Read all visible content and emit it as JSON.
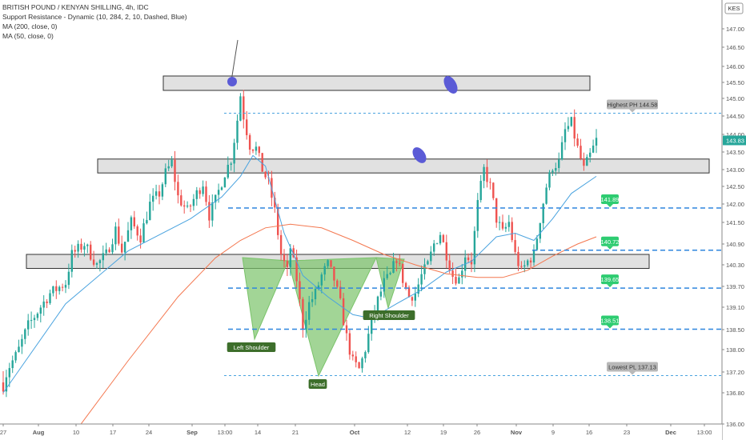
{
  "legend": {
    "symbol_line": "BRITISH POUND / KENYAN SHILLING, 4h, IDC",
    "indicator_sr": "Support Resistance - Dynamic (10, 284, 2, 10, Dashed, Blue)",
    "indicator_ma200": "MA (200, close, 0)",
    "indicator_ma50": "MA (50, close, 0)"
  },
  "currency_badge": "KES",
  "colors": {
    "up": "#26a69a",
    "down": "#ef5350",
    "ma50": "#4aa3df",
    "ma200": "#f4774f",
    "sr_line": "#2e86de",
    "pattern_fill": "#7ac36a",
    "label_green": "#2ecc71",
    "label_gray": "#b8b8b8",
    "pattern_label": "#3d6e2b",
    "ellipse": "#5b5bd6",
    "last_price": "#26a69a"
  },
  "chart_data": {
    "type": "candlestick",
    "title": "BRITISH POUND / KENYAN SHILLING, 4h, IDC",
    "x_labels": [
      "27",
      "Aug",
      "10",
      "17",
      "24",
      "Sep",
      "13:00",
      "14",
      "21",
      "Oct",
      "12",
      "19",
      "26",
      "Nov",
      "9",
      "16",
      "23",
      "Dec",
      "13:00"
    ],
    "y_ticks": [
      "147.00",
      "146.50",
      "146.00",
      "145.50",
      "145.00",
      "144.50",
      "144.00",
      "143.50",
      "143.00",
      "142.50",
      "142.00",
      "141.50",
      "140.90",
      "140.30",
      "139.70",
      "139.10",
      "138.50",
      "138.00",
      "137.20",
      "136.80",
      "136.00"
    ],
    "ylim": [
      135.9,
      147.5
    ],
    "last_price": "143.83",
    "zones": [
      {
        "from": 145.25,
        "to": 145.7
      },
      {
        "from": 142.9,
        "to": 143.3
      },
      {
        "from": 140.2,
        "to": 140.6
      }
    ],
    "dashed_levels": [
      {
        "value": 144.58,
        "label": "Highest PH 144.58",
        "style": "gray"
      },
      {
        "value": 141.89,
        "label": "141.89",
        "style": "green"
      },
      {
        "value": 140.72,
        "label": "140.72",
        "style": "green"
      },
      {
        "value": 139.65,
        "label": "139.65",
        "style": "green"
      },
      {
        "value": 138.51,
        "label": "138.51",
        "style": "green"
      },
      {
        "value": 137.13,
        "label": "Lowest PL 137.13",
        "style": "gray"
      }
    ],
    "pattern_labels": [
      "Left Shoulder",
      "Head",
      "Right Shoulder"
    ],
    "price_path": [
      [
        0,
        137.0
      ],
      [
        8,
        138.6
      ],
      [
        15,
        139.5
      ],
      [
        20,
        139.8
      ],
      [
        22,
        140.6
      ],
      [
        26,
        140.9
      ],
      [
        30,
        140.3
      ],
      [
        33,
        140.6
      ],
      [
        36,
        141.3
      ],
      [
        38,
        140.7
      ],
      [
        41,
        141.5
      ],
      [
        44,
        141.1
      ],
      [
        47,
        142.0
      ],
      [
        50,
        142.3
      ],
      [
        52,
        142.9
      ],
      [
        54,
        143.2
      ],
      [
        56,
        142.2
      ],
      [
        59,
        141.8
      ],
      [
        62,
        142.3
      ],
      [
        64,
        142.6
      ],
      [
        66,
        141.7
      ],
      [
        68,
        142.1
      ],
      [
        71,
        142.9
      ],
      [
        73,
        143.3
      ],
      [
        75,
        144.4
      ],
      [
        76,
        145.1
      ],
      [
        77,
        144.5
      ],
      [
        79,
        143.7
      ],
      [
        81,
        143.6
      ],
      [
        83,
        143.0
      ],
      [
        85,
        142.6
      ],
      [
        87,
        141.8
      ],
      [
        89,
        140.6
      ],
      [
        91,
        140.1
      ],
      [
        92,
        140.8
      ],
      [
        94,
        139.9
      ],
      [
        96,
        138.6
      ],
      [
        98,
        139.2
      ],
      [
        100,
        139.5
      ],
      [
        102,
        140.0
      ],
      [
        104,
        140.3
      ],
      [
        106,
        139.9
      ],
      [
        108,
        139.2
      ],
      [
        110,
        138.3
      ],
      [
        112,
        137.6
      ],
      [
        114,
        137.3
      ],
      [
        116,
        138.0
      ],
      [
        118,
        138.7
      ],
      [
        120,
        139.3
      ],
      [
        122,
        139.8
      ],
      [
        124,
        140.0
      ],
      [
        126,
        140.5
      ],
      [
        127,
        140.2
      ],
      [
        128,
        139.9
      ],
      [
        130,
        139.4
      ],
      [
        132,
        139.5
      ],
      [
        134,
        140.0
      ],
      [
        136,
        140.3
      ],
      [
        138,
        140.9
      ],
      [
        140,
        141.2
      ],
      [
        142,
        140.6
      ],
      [
        144,
        140.0
      ],
      [
        146,
        139.9
      ],
      [
        148,
        140.6
      ],
      [
        150,
        140.4
      ],
      [
        152,
        142.0
      ],
      [
        154,
        143.0
      ],
      [
        156,
        142.5
      ],
      [
        158,
        141.6
      ],
      [
        160,
        141.2
      ],
      [
        162,
        141.5
      ],
      [
        164,
        140.6
      ],
      [
        166,
        140.1
      ],
      [
        168,
        140.4
      ],
      [
        170,
        140.6
      ],
      [
        172,
        141.6
      ],
      [
        174,
        142.5
      ],
      [
        176,
        143.1
      ],
      [
        178,
        143.2
      ],
      [
        180,
        144.1
      ],
      [
        182,
        144.3
      ],
      [
        184,
        143.6
      ],
      [
        186,
        143.0
      ],
      [
        188,
        143.4
      ],
      [
        190,
        143.83
      ]
    ],
    "ma50": [
      [
        0,
        136.8
      ],
      [
        20,
        139.2
      ],
      [
        40,
        140.7
      ],
      [
        60,
        141.6
      ],
      [
        70,
        142.2
      ],
      [
        76,
        142.8
      ],
      [
        80,
        143.4
      ],
      [
        84,
        143.1
      ],
      [
        90,
        141.2
      ],
      [
        96,
        140.0
      ],
      [
        104,
        139.4
      ],
      [
        112,
        138.9
      ],
      [
        118,
        138.8
      ],
      [
        126,
        139.2
      ],
      [
        134,
        139.6
      ],
      [
        142,
        140.1
      ],
      [
        150,
        140.4
      ],
      [
        158,
        141.1
      ],
      [
        164,
        141.2
      ],
      [
        170,
        141.0
      ],
      [
        176,
        141.6
      ],
      [
        182,
        142.3
      ],
      [
        190,
        142.8
      ]
    ],
    "ma200": [
      [
        24,
        135.9
      ],
      [
        40,
        137.6
      ],
      [
        56,
        139.4
      ],
      [
        68,
        140.5
      ],
      [
        76,
        141.0
      ],
      [
        84,
        141.35
      ],
      [
        92,
        141.45
      ],
      [
        102,
        141.35
      ],
      [
        112,
        141.0
      ],
      [
        122,
        140.6
      ],
      [
        132,
        140.3
      ],
      [
        142,
        140.05
      ],
      [
        152,
        139.95
      ],
      [
        160,
        139.95
      ],
      [
        168,
        140.15
      ],
      [
        176,
        140.55
      ],
      [
        184,
        140.9
      ],
      [
        190,
        141.1
      ]
    ]
  }
}
